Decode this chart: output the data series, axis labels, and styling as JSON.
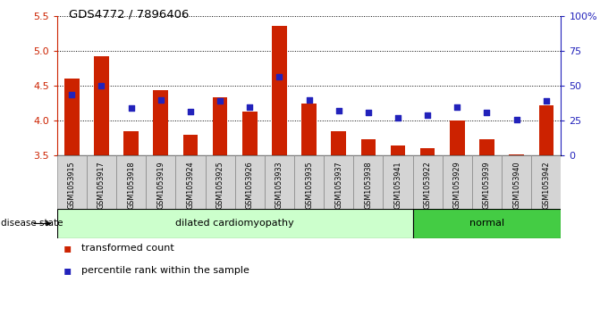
{
  "title": "GDS4772 / 7896406",
  "samples": [
    "GSM1053915",
    "GSM1053917",
    "GSM1053918",
    "GSM1053919",
    "GSM1053924",
    "GSM1053925",
    "GSM1053926",
    "GSM1053933",
    "GSM1053935",
    "GSM1053937",
    "GSM1053938",
    "GSM1053941",
    "GSM1053922",
    "GSM1053929",
    "GSM1053939",
    "GSM1053940",
    "GSM1053942"
  ],
  "bar_values": [
    4.61,
    4.93,
    3.85,
    4.44,
    3.8,
    4.33,
    4.13,
    5.36,
    4.24,
    3.85,
    3.73,
    3.65,
    3.6,
    4.0,
    3.73,
    3.52,
    4.22
  ],
  "dot_values": [
    4.38,
    4.5,
    4.18,
    4.3,
    4.13,
    4.29,
    4.2,
    4.63,
    4.3,
    4.15,
    4.12,
    4.04,
    4.08,
    4.2,
    4.12,
    4.01,
    4.28
  ],
  "disease_states": [
    "dilated",
    "dilated",
    "dilated",
    "dilated",
    "dilated",
    "dilated",
    "dilated",
    "dilated",
    "dilated",
    "dilated",
    "dilated",
    "dilated",
    "normal",
    "normal",
    "normal",
    "normal",
    "normal"
  ],
  "ymin": 3.5,
  "ymax": 5.5,
  "bar_color": "#cc2200",
  "dot_color": "#2222bb",
  "dilated_color": "#ccffcc",
  "normal_color": "#44cc44",
  "left_tick_color": "#cc2200",
  "right_tick_color": "#2222bb",
  "yticks": [
    3.5,
    4.0,
    4.5,
    5.0,
    5.5
  ],
  "right_labels": [
    "0",
    "25",
    "50",
    "75",
    "100%"
  ]
}
